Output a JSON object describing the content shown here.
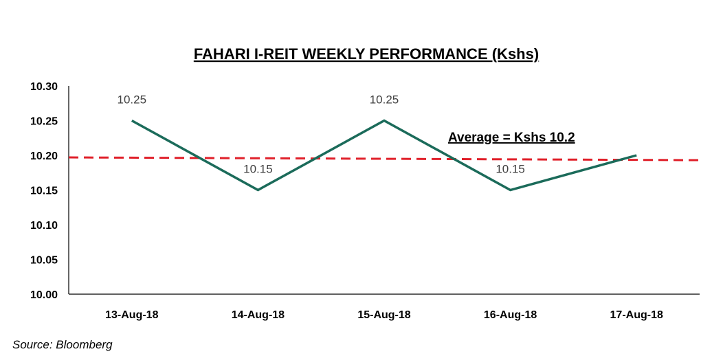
{
  "chart_data": {
    "type": "line",
    "title": "FAHARI I-REIT  WEEKLY PERFORMANCE  (Kshs)",
    "xlabel": "",
    "ylabel": "",
    "categories": [
      "13-Aug-18",
      "14-Aug-18",
      "15-Aug-18",
      "16-Aug-18",
      "17-Aug-18"
    ],
    "series": [
      {
        "values": [
          10.25,
          10.15,
          10.25,
          10.15,
          10.2
        ],
        "color": "#1b6b5a"
      }
    ],
    "data_labels": [
      "10.25",
      "10.15",
      "10.25",
      "10.15",
      ""
    ],
    "ylim": [
      10.0,
      10.3
    ],
    "yticks": [
      "10.00",
      "10.05",
      "10.10",
      "10.15",
      "10.20",
      "10.25",
      "10.30"
    ],
    "average_line": {
      "value": 10.195,
      "label": "Average = Kshs 10.2",
      "color": "#e0202a"
    },
    "grid": false,
    "legend": "none",
    "source": "Source: Bloomberg"
  }
}
